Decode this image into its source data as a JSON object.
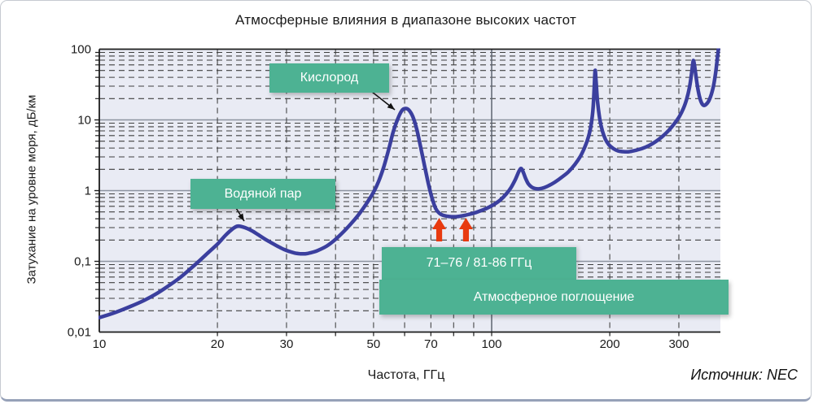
{
  "source": {
    "label": "Источник: NEC"
  },
  "colors": {
    "plot_bg": "#e9ebf4",
    "grid_minor": "#3f3f3f",
    "grid_major": "#8c93a0",
    "grid_major_dark": "#5d6470",
    "axis": "#1c1c1c",
    "curve": "#3b3f9e",
    "arrow_red": "#e83a10",
    "annotation_green": "#4db293"
  },
  "chart_data": {
    "type": "line",
    "title": "Атмосферные влияния в диапазоне высоких частот",
    "xlabel": "Частота, ГГц",
    "ylabel": "Затухание на уровне моря, дБ/км",
    "x_scale": "log",
    "y_scale": "log",
    "xlim": [
      10,
      385
    ],
    "ylim": [
      0.01,
      100
    ],
    "grid": true,
    "x_tick_labels": [
      {
        "f": 10,
        "label": "10"
      },
      {
        "f": 20,
        "label": "20"
      },
      {
        "f": 30,
        "label": "30"
      },
      {
        "f": 50,
        "label": "50"
      },
      {
        "f": 70,
        "label": "70"
      },
      {
        "f": 100,
        "label": "100"
      },
      {
        "f": 200,
        "label": "200"
      },
      {
        "f": 300,
        "label": "300"
      }
    ],
    "y_tick_labels": [
      {
        "v": 100,
        "label": "100"
      },
      {
        "v": 10,
        "label": "10"
      },
      {
        "v": 1,
        "label": "1"
      },
      {
        "v": 0.1,
        "label": "0,1"
      },
      {
        "v": 0.01,
        "label": "0,01"
      }
    ],
    "x_minor_gridlines": [
      20,
      30,
      40,
      50,
      60,
      70,
      80,
      90,
      200,
      300
    ],
    "x_major_gridlines": [
      100
    ],
    "series": [
      {
        "name": "Затухание на уровне моря",
        "color": "#3b3f9e",
        "points": [
          [
            10,
            0.016
          ],
          [
            11,
            0.019
          ],
          [
            12,
            0.023
          ],
          [
            13,
            0.028
          ],
          [
            14,
            0.035
          ],
          [
            15,
            0.045
          ],
          [
            16,
            0.058
          ],
          [
            17,
            0.077
          ],
          [
            18,
            0.102
          ],
          [
            19,
            0.135
          ],
          [
            20,
            0.175
          ],
          [
            21,
            0.235
          ],
          [
            22,
            0.295
          ],
          [
            22.6,
            0.315
          ],
          [
            23.5,
            0.3
          ],
          [
            24.5,
            0.27
          ],
          [
            25.5,
            0.235
          ],
          [
            26.5,
            0.205
          ],
          [
            27.5,
            0.182
          ],
          [
            28.5,
            0.163
          ],
          [
            29.5,
            0.148
          ],
          [
            30.5,
            0.138
          ],
          [
            31.5,
            0.131
          ],
          [
            32.5,
            0.128
          ],
          [
            33.5,
            0.128
          ],
          [
            34.5,
            0.132
          ],
          [
            36,
            0.142
          ],
          [
            38,
            0.165
          ],
          [
            40,
            0.205
          ],
          [
            42,
            0.265
          ],
          [
            44,
            0.35
          ],
          [
            46,
            0.47
          ],
          [
            48,
            0.66
          ],
          [
            50,
            0.95
          ],
          [
            51.5,
            1.35
          ],
          [
            53,
            2.1
          ],
          [
            54.5,
            3.6
          ],
          [
            56,
            6.5
          ],
          [
            57.5,
            10
          ],
          [
            59,
            13.5
          ],
          [
            60.2,
            14.5
          ],
          [
            61.5,
            13.8
          ],
          [
            63,
            11
          ],
          [
            64.5,
            7.2
          ],
          [
            66,
            4
          ],
          [
            67.5,
            2.2
          ],
          [
            69,
            1.25
          ],
          [
            70.5,
            0.78
          ],
          [
            72,
            0.56
          ],
          [
            73.5,
            0.48
          ],
          [
            75,
            0.45
          ],
          [
            77,
            0.435
          ],
          [
            79,
            0.428
          ],
          [
            81,
            0.428
          ],
          [
            83,
            0.435
          ],
          [
            85,
            0.445
          ],
          [
            87,
            0.458
          ],
          [
            90,
            0.48
          ],
          [
            93,
            0.51
          ],
          [
            97,
            0.56
          ],
          [
            101,
            0.63
          ],
          [
            105,
            0.73
          ],
          [
            109,
            0.9
          ],
          [
            112,
            1.1
          ],
          [
            115,
            1.45
          ],
          [
            117.5,
            1.9
          ],
          [
            119,
            2.05
          ],
          [
            120.5,
            1.8
          ],
          [
            122,
            1.5
          ],
          [
            124,
            1.25
          ],
          [
            126.5,
            1.12
          ],
          [
            129,
            1.07
          ],
          [
            132,
            1.06
          ],
          [
            136,
            1.1
          ],
          [
            140,
            1.18
          ],
          [
            145,
            1.32
          ],
          [
            151,
            1.55
          ],
          [
            157,
            1.85
          ],
          [
            163,
            2.35
          ],
          [
            168,
            3
          ],
          [
            172,
            3.9
          ],
          [
            175.5,
            5.2
          ],
          [
            178.5,
            7.5
          ],
          [
            181,
            13
          ],
          [
            182.5,
            27
          ],
          [
            183.5,
            50
          ],
          [
            184.5,
            36
          ],
          [
            186,
            19
          ],
          [
            188.5,
            10.5
          ],
          [
            191.5,
            7
          ],
          [
            195,
            5.3
          ],
          [
            199,
            4.45
          ],
          [
            204,
            3.95
          ],
          [
            210,
            3.65
          ],
          [
            217,
            3.55
          ],
          [
            224,
            3.55
          ],
          [
            232,
            3.7
          ],
          [
            242,
            3.95
          ],
          [
            252,
            4.35
          ],
          [
            262,
            4.95
          ],
          [
            272,
            5.8
          ],
          [
            282,
            7
          ],
          [
            292,
            8.8
          ],
          [
            301,
            11.2
          ],
          [
            308,
            14.5
          ],
          [
            314,
            19.5
          ],
          [
            319,
            28
          ],
          [
            322.5,
            41
          ],
          [
            325.5,
            62
          ],
          [
            327,
            69
          ],
          [
            329,
            58
          ],
          [
            332,
            40
          ],
          [
            336,
            26
          ],
          [
            340,
            19.5
          ],
          [
            344,
            16.8
          ],
          [
            348,
            16
          ],
          [
            353,
            16.8
          ],
          [
            358,
            18.8
          ],
          [
            363,
            23
          ],
          [
            368,
            31
          ],
          [
            372,
            45
          ],
          [
            375,
            65
          ],
          [
            377.5,
            90
          ],
          [
            379.5,
            115
          ]
        ]
      }
    ],
    "annotations": {
      "oxygen": {
        "label": "Кислород",
        "peak_frequency": 60,
        "peak_value": 14.5
      },
      "water_vapor": {
        "label": "Водяной пар",
        "peak_frequency": 22.5,
        "peak_value": 0.31
      },
      "band": {
        "label": "71–76 / 81-86 ГГц",
        "arrow_frequencies": [
          73.5,
          86
        ]
      },
      "absorption": {
        "label": "Атмосферное поглощение"
      }
    }
  }
}
